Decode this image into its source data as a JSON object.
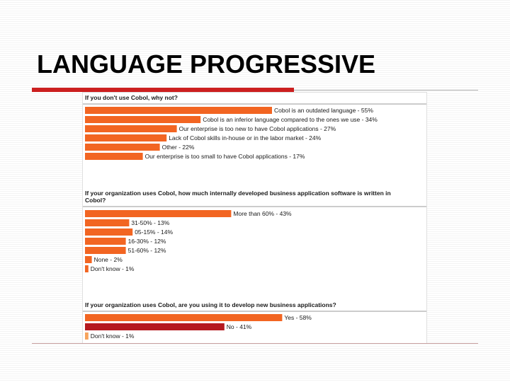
{
  "slide": {
    "title": "LANGUAGE PROGRESSIVE"
  },
  "colors": {
    "bar_orange": "#f26522",
    "bar_dark_red": "#b5191f",
    "bar_light_orange": "#f7a35c",
    "rule_red": "#cc1f1f"
  },
  "chart_data": [
    {
      "type": "bar",
      "orientation": "horizontal",
      "title": "If you don't use Cobol, why not?",
      "xlim": [
        0,
        100
      ],
      "bars": [
        {
          "label": "Cobol is an outdated language - 55%",
          "value": 55,
          "color": "#f26522"
        },
        {
          "label": "Cobol is an inferior language compared to the ones we use - 34%",
          "value": 34,
          "color": "#f26522"
        },
        {
          "label": "Our enterprise is too new to have Cobol applications - 27%",
          "value": 27,
          "color": "#f26522"
        },
        {
          "label": "Lack of Cobol skills in-house or in the labor market - 24%",
          "value": 24,
          "color": "#f26522"
        },
        {
          "label": "Other - 22%",
          "value": 22,
          "color": "#f26522"
        },
        {
          "label": "Our enterprise is too small to have Cobol applications - 17%",
          "value": 17,
          "color": "#f26522"
        }
      ]
    },
    {
      "type": "bar",
      "orientation": "horizontal",
      "title": "If your organization uses Cobol, how much internally developed business application software is written in Cobol?",
      "xlim": [
        0,
        100
      ],
      "bars": [
        {
          "label": "More than 60% - 43%",
          "value": 43,
          "color": "#f26522"
        },
        {
          "label": "31-50% - 13%",
          "value": 13,
          "color": "#f26522"
        },
        {
          "label": "05-15% - 14%",
          "value": 14,
          "color": "#f26522"
        },
        {
          "label": "16-30% - 12%",
          "value": 12,
          "color": "#f26522"
        },
        {
          "label": "51-60% - 12%",
          "value": 12,
          "color": "#f26522"
        },
        {
          "label": "None - 2%",
          "value": 2,
          "color": "#f26522"
        },
        {
          "label": "Don't know - 1%",
          "value": 1,
          "color": "#f26522"
        }
      ]
    },
    {
      "type": "bar",
      "orientation": "horizontal",
      "title": "If your organization uses Cobol, are you using it to develop new business applications?",
      "xlim": [
        0,
        100
      ],
      "bars": [
        {
          "label": "Yes - 58%",
          "value": 58,
          "color": "#f26522"
        },
        {
          "label": "No - 41%",
          "value": 41,
          "color": "#b5191f"
        },
        {
          "label": "Don't know - 1%",
          "value": 1,
          "color": "#f7a35c"
        }
      ]
    }
  ]
}
